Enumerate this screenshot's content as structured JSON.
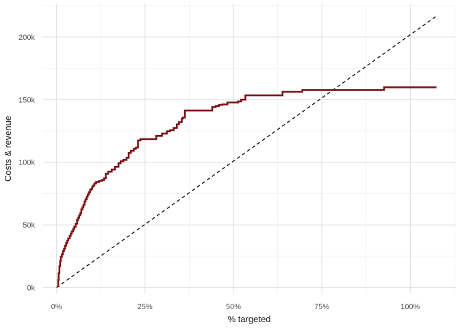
{
  "chart": {
    "background": "#ffffff",
    "grid_major_color": "#e3e3e3",
    "grid_minor_color": "#f0f0f0",
    "tick_label_color": "#4d4d4d",
    "axis_title_color": "#1a1a1a"
  },
  "axes": {
    "x": {
      "title": "% targeted",
      "tick_labels": [
        "0%",
        "25%",
        "50%",
        "75%",
        "100%"
      ],
      "tick_values": [
        0,
        25,
        50,
        75,
        100
      ],
      "minor_values": [
        12.5,
        37.5,
        62.5,
        87.5,
        112.5
      ],
      "range_pct": [
        -3.8,
        113.0
      ]
    },
    "y": {
      "title": "Costs & revenue",
      "tick_labels": [
        "0k",
        "50k",
        "100k",
        "150k",
        "200k"
      ],
      "tick_values": [
        0,
        50,
        100,
        150,
        200
      ],
      "minor_values": [
        25,
        75,
        125,
        175,
        225
      ],
      "range_thousands": [
        -4.8,
        226.5
      ]
    }
  },
  "chart_data": {
    "type": "line",
    "title": "",
    "xlabel": "% targeted",
    "ylabel": "Costs & revenue",
    "x_units": "percent targeted",
    "y_units": "thousands (k)",
    "xlim": [
      -3.8,
      113.0
    ],
    "ylim": [
      -4.8,
      226.5
    ],
    "grid": "on",
    "legend": "none",
    "series": [
      {
        "name": "cumulative-revenue-step-curve",
        "color": "#7C1215",
        "style": "step",
        "stroke_width": 2.6,
        "points": [
          [
            0.3,
            1
          ],
          [
            0.45,
            6
          ],
          [
            0.6,
            11.5
          ],
          [
            0.8,
            17
          ],
          [
            1.0,
            21
          ],
          [
            1.2,
            24.5
          ],
          [
            1.5,
            26.5
          ],
          [
            1.8,
            29
          ],
          [
            2.1,
            31
          ],
          [
            2.4,
            33.5
          ],
          [
            2.7,
            35.5
          ],
          [
            3.0,
            37.5
          ],
          [
            3.3,
            39.2
          ],
          [
            3.7,
            41.2
          ],
          [
            4.0,
            43
          ],
          [
            4.3,
            44.8
          ],
          [
            4.7,
            46.6
          ],
          [
            5.0,
            48.5
          ],
          [
            5.4,
            51
          ],
          [
            5.8,
            54
          ],
          [
            6.1,
            55.8
          ],
          [
            6.4,
            57.7
          ],
          [
            6.7,
            59.5
          ],
          [
            7.0,
            62.3
          ],
          [
            7.3,
            64.1
          ],
          [
            7.6,
            66
          ],
          [
            7.9,
            68.7
          ],
          [
            8.2,
            70.5
          ],
          [
            8.5,
            72.4
          ],
          [
            8.8,
            74.2
          ],
          [
            9.1,
            76
          ],
          [
            9.5,
            77.9
          ],
          [
            9.8,
            78.8
          ],
          [
            10.1,
            80.6
          ],
          [
            10.4,
            81.5
          ],
          [
            10.7,
            83
          ],
          [
            11.2,
            84.3
          ],
          [
            12.0,
            85.1
          ],
          [
            12.8,
            85.8
          ],
          [
            13.4,
            87.2
          ],
          [
            13.9,
            90.9
          ],
          [
            14.6,
            92.6
          ],
          [
            15.6,
            94.2
          ],
          [
            16.5,
            96.4
          ],
          [
            17.5,
            99.2
          ],
          [
            18.1,
            100.8
          ],
          [
            18.9,
            101.9
          ],
          [
            19.8,
            103.6
          ],
          [
            20.4,
            107.4
          ],
          [
            21.0,
            109.1
          ],
          [
            21.8,
            110.7
          ],
          [
            22.4,
            111.8
          ],
          [
            23.0,
            117.4
          ],
          [
            23.7,
            118.5
          ],
          [
            28.2,
            121.0
          ],
          [
            29.8,
            122.9
          ],
          [
            31.2,
            124.7
          ],
          [
            32.1,
            125.6
          ],
          [
            33.1,
            127.4
          ],
          [
            34.0,
            130.2
          ],
          [
            34.6,
            132.0
          ],
          [
            35.4,
            134.8
          ],
          [
            35.7,
            135.7
          ],
          [
            36.3,
            141.3
          ],
          [
            44.0,
            144.0
          ],
          [
            45.0,
            144.9
          ],
          [
            45.9,
            145.8
          ],
          [
            46.9,
            146.2
          ],
          [
            48.3,
            147.7
          ],
          [
            51.3,
            148.6
          ],
          [
            52.2,
            150.0
          ],
          [
            53.4,
            153.4
          ],
          [
            63.9,
            156.2
          ],
          [
            69.5,
            157.6
          ],
          [
            92.6,
            159.8
          ],
          [
            107.4,
            159.8
          ]
        ]
      },
      {
        "name": "cost-reference-dashed-line",
        "color": "#111111",
        "style": "dashed-straight",
        "stroke_width": 1.4,
        "dash_pattern": "5 4",
        "points": [
          [
            0,
            0
          ],
          [
            107.4,
            216.7
          ]
        ]
      }
    ]
  }
}
